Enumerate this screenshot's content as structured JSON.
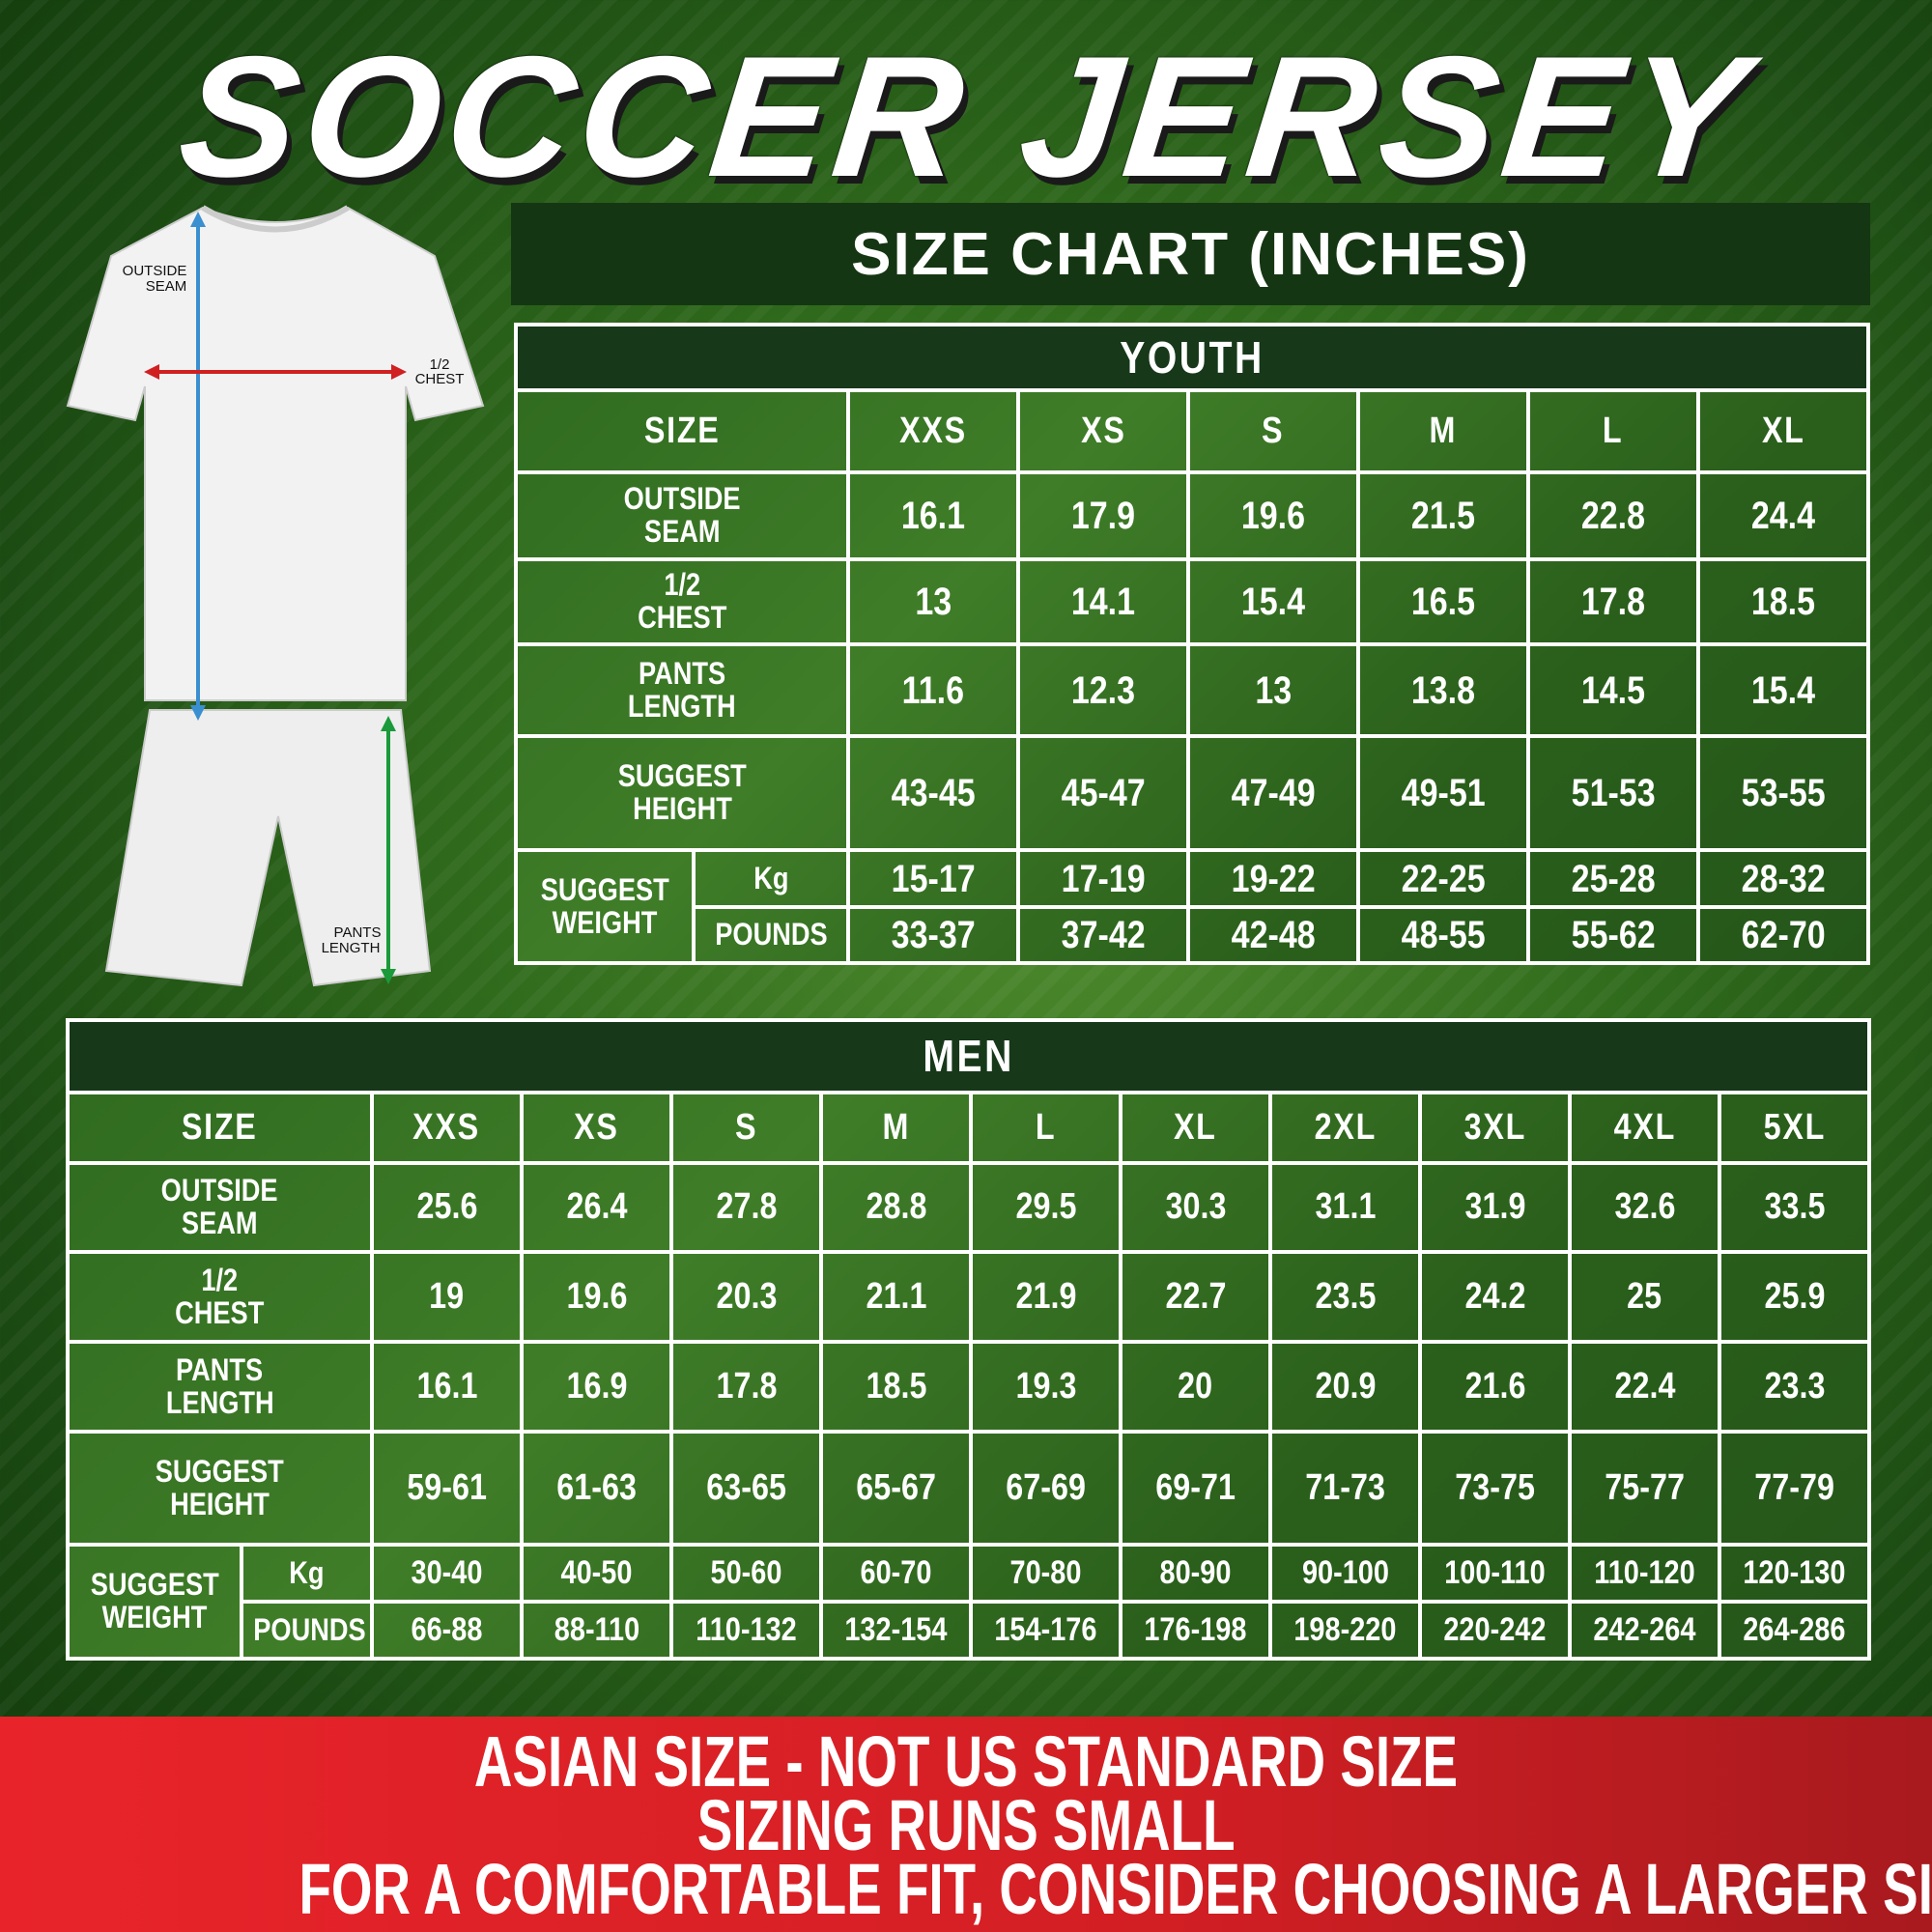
{
  "title": "SOCCER JERSEY",
  "chart_heading": "SIZE CHART (INCHES)",
  "illustration": {
    "outside_seam": [
      "OUTSIDE",
      "SEAM"
    ],
    "half_chest": [
      "1/2",
      "CHEST"
    ],
    "pants_length": [
      "PANTS",
      "LENGTH"
    ]
  },
  "colors": {
    "accent_red": "#d21f24",
    "header_green": "#17391a",
    "body_green": "#3a7a24",
    "seam_arrow": "#3a8fd0",
    "chest_arrow": "#d02020",
    "pants_arrow": "#1a9a3a"
  },
  "youth": {
    "heading": "YOUTH",
    "size_label": "SIZE",
    "sizes": [
      "XXS",
      "XS",
      "S",
      "M",
      "L",
      "XL"
    ],
    "rows": [
      {
        "label": [
          "OUTSIDE",
          "SEAM"
        ],
        "values": [
          "16.1",
          "17.9",
          "19.6",
          "21.5",
          "22.8",
          "24.4"
        ]
      },
      {
        "label": [
          "1/2",
          "CHEST"
        ],
        "values": [
          "13",
          "14.1",
          "15.4",
          "16.5",
          "17.8",
          "18.5"
        ]
      },
      {
        "label": [
          "PANTS",
          "LENGTH"
        ],
        "values": [
          "11.6",
          "12.3",
          "13",
          "13.8",
          "14.5",
          "15.4"
        ]
      },
      {
        "label": [
          "SUGGEST",
          "HEIGHT"
        ],
        "values": [
          "43-45",
          "45-47",
          "47-49",
          "49-51",
          "51-53",
          "53-55"
        ]
      }
    ],
    "weight_label": [
      "SUGGEST",
      "WEIGHT"
    ],
    "kg_label": "Kg",
    "pounds_label": "POUNDS",
    "kg": [
      "15-17",
      "17-19",
      "19-22",
      "22-25",
      "25-28",
      "28-32"
    ],
    "pounds": [
      "33-37",
      "37-42",
      "42-48",
      "48-55",
      "55-62",
      "62-70"
    ]
  },
  "men": {
    "heading": "MEN",
    "size_label": "SIZE",
    "sizes": [
      "XXS",
      "XS",
      "S",
      "M",
      "L",
      "XL",
      "2XL",
      "3XL",
      "4XL",
      "5XL"
    ],
    "rows": [
      {
        "label": [
          "OUTSIDE",
          "SEAM"
        ],
        "values": [
          "25.6",
          "26.4",
          "27.8",
          "28.8",
          "29.5",
          "30.3",
          "31.1",
          "31.9",
          "32.6",
          "33.5"
        ]
      },
      {
        "label": [
          "1/2",
          "CHEST"
        ],
        "values": [
          "19",
          "19.6",
          "20.3",
          "21.1",
          "21.9",
          "22.7",
          "23.5",
          "24.2",
          "25",
          "25.9"
        ]
      },
      {
        "label": [
          "PANTS",
          "LENGTH"
        ],
        "values": [
          "16.1",
          "16.9",
          "17.8",
          "18.5",
          "19.3",
          "20",
          "20.9",
          "21.6",
          "22.4",
          "23.3"
        ]
      },
      {
        "label": [
          "SUGGEST",
          "HEIGHT"
        ],
        "values": [
          "59-61",
          "61-63",
          "63-65",
          "65-67",
          "67-69",
          "69-71",
          "71-73",
          "73-75",
          "75-77",
          "77-79"
        ]
      }
    ],
    "weight_label": [
      "SUGGEST",
      "WEIGHT"
    ],
    "kg_label": "Kg",
    "pounds_label": "POUNDS",
    "kg": [
      "30-40",
      "40-50",
      "50-60",
      "60-70",
      "70-80",
      "80-90",
      "90-100",
      "100-110",
      "110-120",
      "120-130"
    ],
    "pounds": [
      "66-88",
      "88-110",
      "110-132",
      "132-154",
      "154-176",
      "176-198",
      "198-220",
      "220-242",
      "242-264",
      "264-286"
    ]
  },
  "banner": [
    "ASIAN SIZE - NOT US STANDARD SIZE",
    "SIZING RUNS SMALL",
    "FOR A COMFORTABLE FIT, CONSIDER CHOOSING A LARGER SIZE"
  ]
}
